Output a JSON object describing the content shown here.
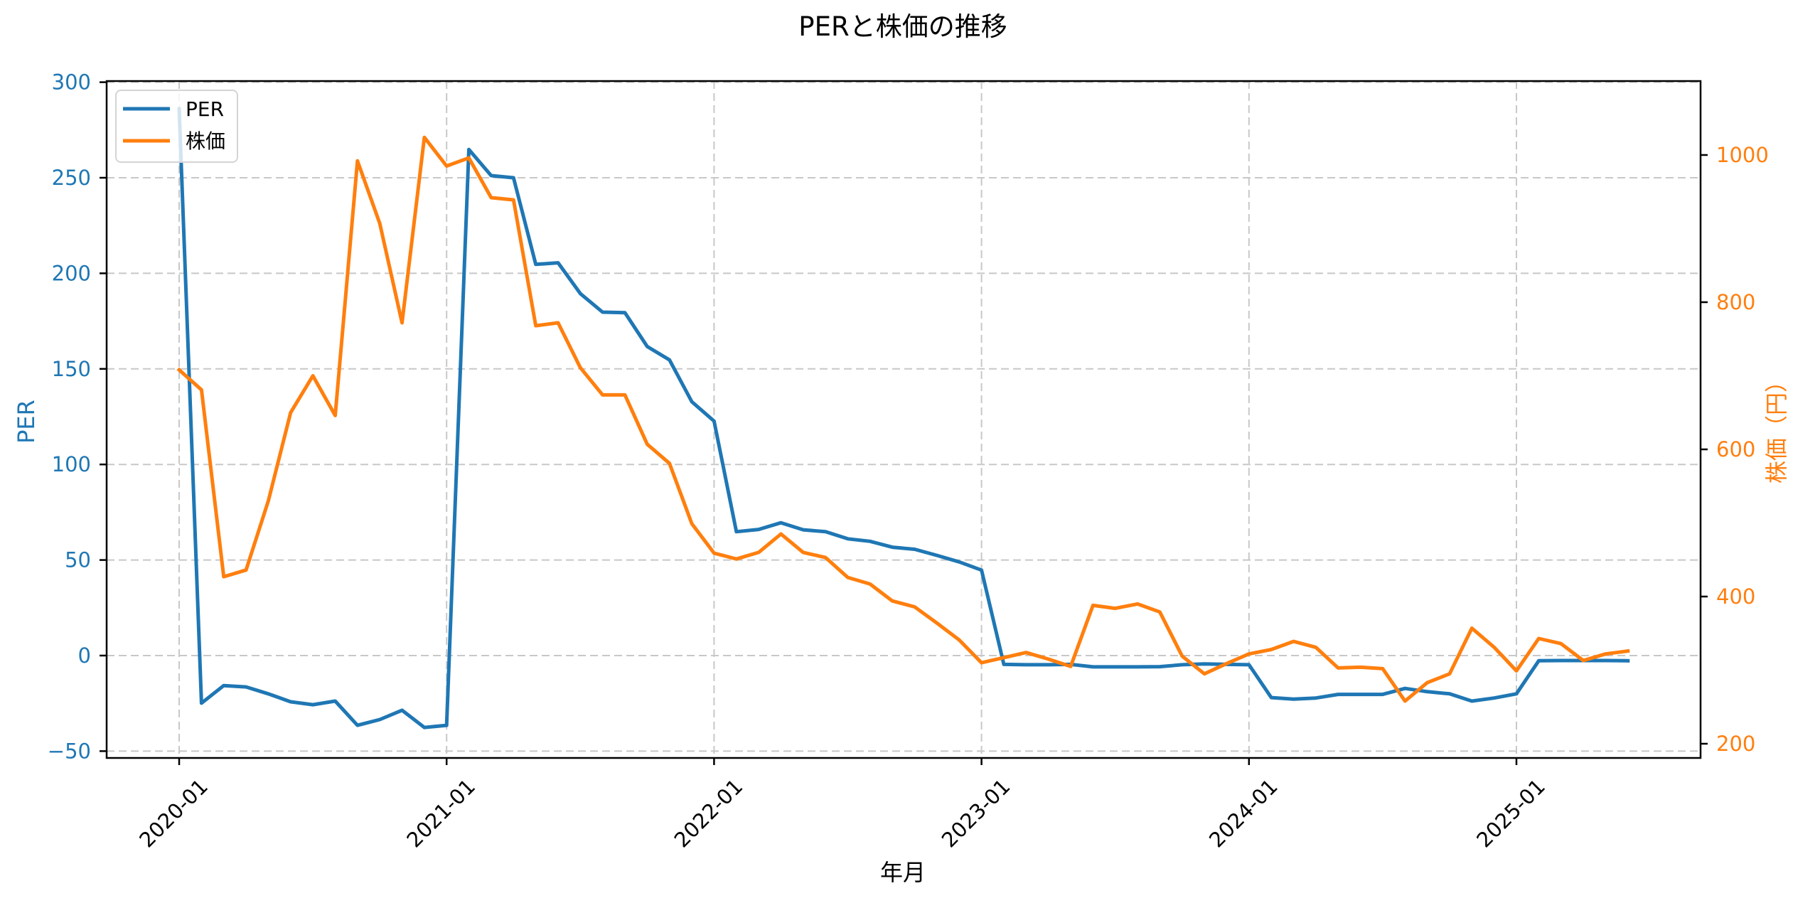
{
  "chart_data": {
    "type": "line",
    "title": "PERと株価の推移",
    "xlabel": "年月",
    "ylabel": "PER",
    "ylabel_right": "株価（円）",
    "ylim": [
      -53.7,
      301.5
    ],
    "ylim_right": [
      180.7,
      1100
    ],
    "grid": true,
    "legend_position": "upper left",
    "x_ticks": [
      "2020-01",
      "2021-01",
      "2022-01",
      "2023-01",
      "2024-01",
      "2025-01"
    ],
    "y_ticks_left": [
      -50,
      0,
      50,
      100,
      150,
      200,
      250,
      300
    ],
    "y_ticks_right": [
      200,
      400,
      600,
      800,
      1000
    ],
    "x": [
      "2020-01",
      "2020-02",
      "2020-03",
      "2020-04",
      "2020-05",
      "2020-06",
      "2020-07",
      "2020-08",
      "2020-09",
      "2020-10",
      "2020-11",
      "2020-12",
      "2021-01",
      "2021-02",
      "2021-03",
      "2021-04",
      "2021-05",
      "2021-06",
      "2021-07",
      "2021-08",
      "2021-09",
      "2021-10",
      "2021-11",
      "2021-12",
      "2022-01",
      "2022-02",
      "2022-03",
      "2022-04",
      "2022-05",
      "2022-06",
      "2022-07",
      "2022-08",
      "2022-09",
      "2022-10",
      "2022-11",
      "2022-12",
      "2023-01",
      "2023-02",
      "2023-03",
      "2023-04",
      "2023-05",
      "2023-06",
      "2023-07",
      "2023-08",
      "2023-09",
      "2023-10",
      "2023-11",
      "2023-12",
      "2024-01",
      "2024-02",
      "2024-03",
      "2024-04",
      "2024-05",
      "2024-06",
      "2024-07",
      "2024-08",
      "2024-09",
      "2024-10",
      "2024-11",
      "2024-12",
      "2025-01",
      "2025-02",
      "2025-03",
      "2025-04",
      "2025-05",
      "2025-06"
    ],
    "series": [
      {
        "name": "PER",
        "axis": "left",
        "color": "#1f77b4",
        "values": [
          286,
          -24.9,
          -15.7,
          -16.4,
          -20,
          -24.2,
          -25.7,
          -23.8,
          -36.5,
          -33.5,
          -28.6,
          -37.6,
          -36.5,
          264.8,
          251.1,
          250,
          204.7,
          205.5,
          189.4,
          179.7,
          179.4,
          161.7,
          154.7,
          132.8,
          122.7,
          64.8,
          66,
          69.5,
          65.8,
          64.8,
          61.1,
          59.8,
          56.7,
          55.6,
          52.4,
          49,
          44.7,
          -4.6,
          -4.8,
          -4.8,
          -4.6,
          -5.9,
          -5.9,
          -5.9,
          -5.8,
          -4.8,
          -4.4,
          -4.6,
          -4.8,
          -22,
          -22.8,
          -22.2,
          -20.3,
          -20.3,
          -20.3,
          -17.2,
          -18.9,
          -20,
          -23.8,
          -22.2,
          -20,
          -2.7,
          -2.6,
          -2.6,
          -2.6,
          -2.7
        ]
      },
      {
        "name": "株価",
        "axis": "right",
        "color": "#ff7f0e",
        "values": [
          708,
          681,
          427,
          436,
          530,
          650,
          700,
          646,
          992,
          907,
          772,
          1024,
          985,
          996,
          942,
          939,
          768,
          772,
          711,
          674,
          674,
          607,
          581,
          499,
          459,
          451,
          460,
          485,
          460,
          453,
          426,
          417,
          394,
          386,
          364,
          341,
          310,
          317,
          324,
          315,
          305,
          388,
          384,
          390,
          379,
          319,
          295,
          309,
          322,
          328,
          339,
          331,
          303,
          304,
          302,
          258,
          283,
          295,
          357,
          331,
          299,
          343,
          336,
          313,
          322,
          326
        ]
      }
    ]
  },
  "legend": {
    "items": [
      {
        "label": "PER",
        "color": "#1f77b4"
      },
      {
        "label": "株価",
        "color": "#ff7f0e"
      }
    ]
  },
  "colors": {
    "per": "#1f77b4",
    "price": "#ff7f0e",
    "grid": "#c8c8c8",
    "axis": "#000000"
  }
}
